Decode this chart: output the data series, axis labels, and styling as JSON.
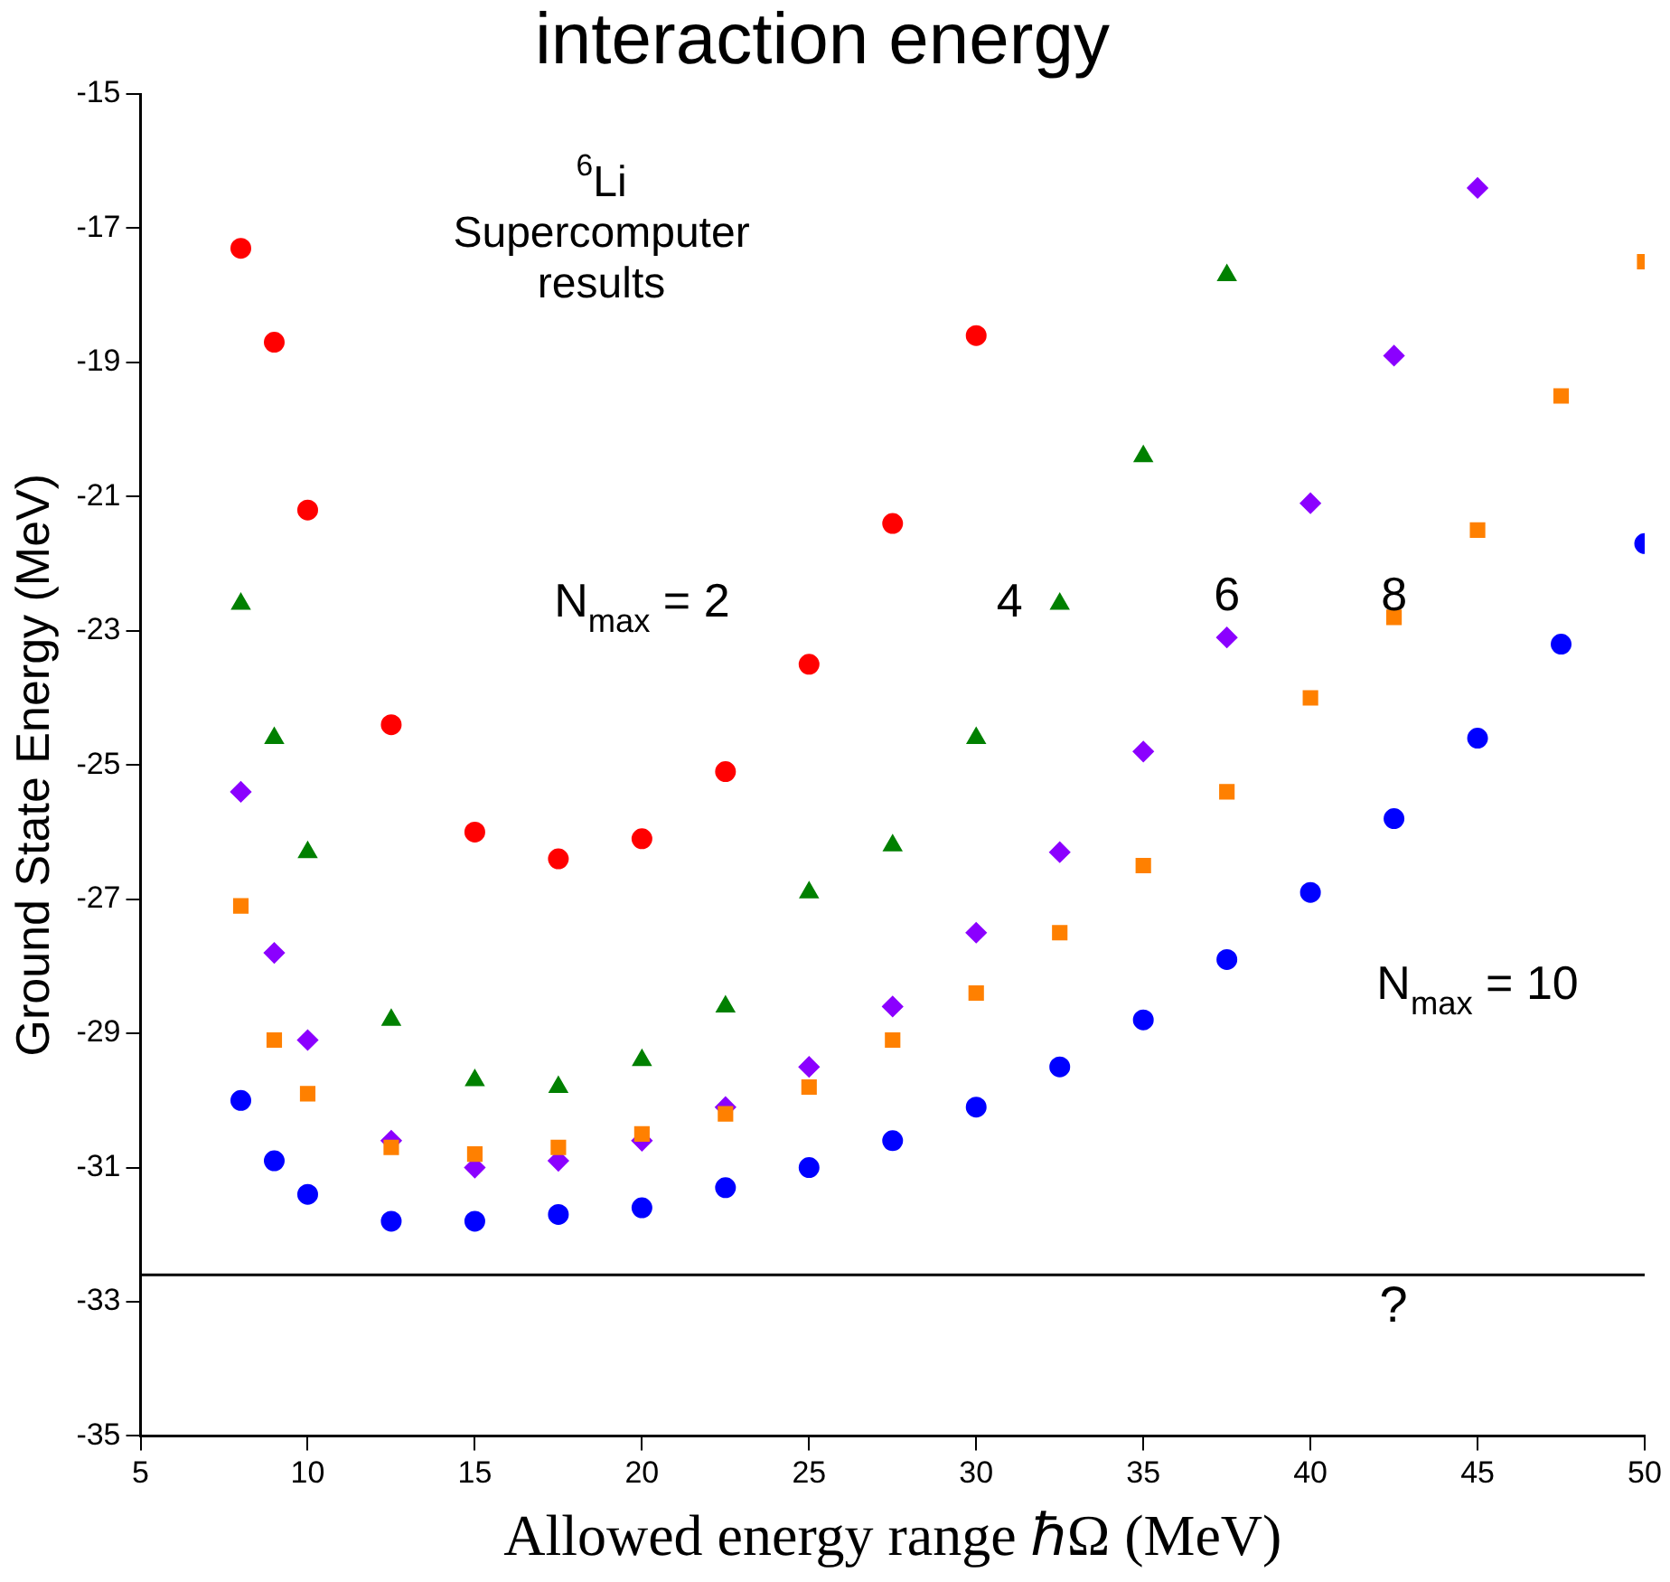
{
  "chart_data": {
    "type": "scatter",
    "title": "interaction energy",
    "xlabel": "Allowed energy range ℏΩ (MeV)",
    "ylabel": "Ground State Energy (MeV)",
    "xlim": [
      5,
      50
    ],
    "xticks": [
      5,
      10,
      15,
      20,
      25,
      30,
      35,
      40,
      45,
      50
    ],
    "ylim": [
      -35,
      -15
    ],
    "yticks": [
      -35,
      -33,
      -31,
      -29,
      -27,
      -25,
      -23,
      -21,
      -19,
      -17,
      -15
    ],
    "grid": false,
    "legend": false,
    "series": [
      {
        "name": "N$_{max}$ = 2",
        "color": "#ff0000",
        "marker": "circle",
        "x": [
          8,
          9,
          10,
          12.5,
          15,
          17.5,
          20,
          22.5,
          25,
          27.5,
          30
        ],
        "values": [
          -17.3,
          -18.7,
          -21.2,
          -24.4,
          -26.0,
          -26.4,
          -26.1,
          -25.1,
          -23.5,
          -21.4,
          -18.6
        ]
      },
      {
        "name": "4",
        "color": "#008000",
        "marker": "triangle",
        "x": [
          8,
          9,
          10,
          12.5,
          15,
          17.5,
          20,
          22.5,
          25,
          27.5,
          30,
          32.5,
          35,
          37.5
        ],
        "values": [
          -22.6,
          -24.6,
          -26.3,
          -28.8,
          -29.7,
          -29.8,
          -29.4,
          -28.6,
          -26.9,
          -26.2,
          -24.6,
          -22.6,
          -20.4,
          -17.7
        ]
      },
      {
        "name": "6",
        "color": "#8b00ff",
        "marker": "diamond",
        "x": [
          8,
          9,
          10,
          12.5,
          15,
          17.5,
          20,
          22.5,
          25,
          27.5,
          30,
          32.5,
          35,
          37.5,
          40,
          42.5,
          45
        ],
        "values": [
          -25.4,
          -27.8,
          -29.1,
          -30.6,
          -31.0,
          -30.9,
          -30.6,
          -30.1,
          -29.5,
          -28.6,
          -27.5,
          -26.3,
          -24.8,
          -23.1,
          -21.1,
          -18.9,
          -16.4
        ]
      },
      {
        "name": "8",
        "color": "#ff8000",
        "marker": "square",
        "x": [
          8,
          9,
          10,
          12.5,
          15,
          17.5,
          20,
          22.5,
          25,
          27.5,
          30,
          32.5,
          35,
          37.5,
          40,
          42.5,
          45,
          47.5,
          50
        ],
        "values": [
          -27.1,
          -29.1,
          -29.9,
          -30.7,
          -30.8,
          -30.7,
          -30.5,
          -30.2,
          -29.8,
          -29.1,
          -28.4,
          -27.5,
          -26.5,
          -25.4,
          -24.0,
          -22.8,
          -21.5,
          -19.5,
          -17.5
        ]
      },
      {
        "name": "N$_{max}$ = 10",
        "color": "#0000ff",
        "marker": "circle",
        "x": [
          8,
          9,
          10,
          12.5,
          15,
          17.5,
          20,
          22.5,
          25,
          27.5,
          30,
          32.5,
          35,
          37.5,
          40,
          42.5,
          45,
          47.5,
          50
        ],
        "values": [
          -30.0,
          -30.9,
          -31.4,
          -31.8,
          -31.8,
          -31.7,
          -31.6,
          -31.3,
          -31.0,
          -30.6,
          -30.1,
          -29.5,
          -28.8,
          -27.9,
          -26.9,
          -25.8,
          -24.6,
          -23.2,
          -21.7
        ]
      }
    ],
    "ref_lines": [
      {
        "axis": "y",
        "value": -32.6,
        "color": "#000000",
        "label": "?"
      }
    ],
    "annotations": [
      "$^{6}$Li",
      "Supercomputer results"
    ]
  }
}
